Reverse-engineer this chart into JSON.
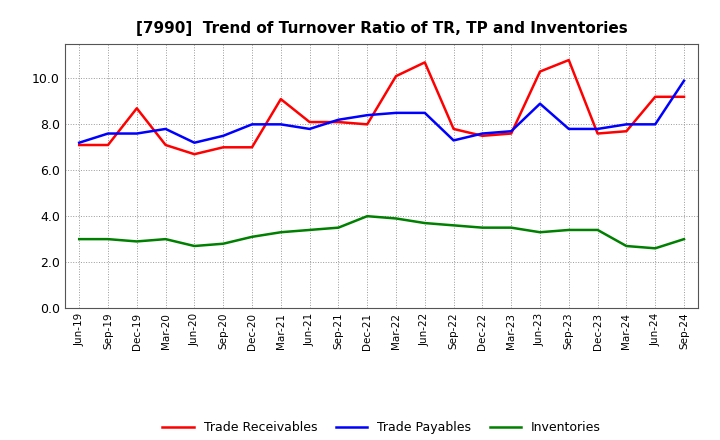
{
  "title": "[7990]  Trend of Turnover Ratio of TR, TP and Inventories",
  "labels": [
    "Jun-19",
    "Sep-19",
    "Dec-19",
    "Mar-20",
    "Jun-20",
    "Sep-20",
    "Dec-20",
    "Mar-21",
    "Jun-21",
    "Sep-21",
    "Dec-21",
    "Mar-22",
    "Jun-22",
    "Sep-22",
    "Dec-22",
    "Mar-23",
    "Jun-23",
    "Sep-23",
    "Dec-23",
    "Mar-24",
    "Jun-24",
    "Sep-24"
  ],
  "trade_receivables": [
    7.1,
    7.1,
    8.7,
    7.1,
    6.7,
    7.0,
    7.0,
    9.1,
    8.1,
    8.1,
    8.0,
    10.1,
    10.7,
    7.8,
    7.5,
    7.6,
    10.3,
    10.8,
    7.6,
    7.7,
    9.2,
    9.2
  ],
  "trade_payables": [
    7.2,
    7.6,
    7.6,
    7.8,
    7.2,
    7.5,
    8.0,
    8.0,
    7.8,
    8.2,
    8.4,
    8.5,
    8.5,
    7.3,
    7.6,
    7.7,
    8.9,
    7.8,
    7.8,
    8.0,
    8.0,
    9.9
  ],
  "inventories": [
    3.0,
    3.0,
    2.9,
    3.0,
    2.7,
    2.8,
    3.1,
    3.3,
    3.4,
    3.5,
    4.0,
    3.9,
    3.7,
    3.6,
    3.5,
    3.5,
    3.3,
    3.4,
    3.4,
    2.7,
    2.6,
    3.0
  ],
  "ylim": [
    0,
    11.5
  ],
  "yticks": [
    0.0,
    2.0,
    4.0,
    6.0,
    8.0,
    10.0
  ],
  "legend_labels": [
    "Trade Receivables",
    "Trade Payables",
    "Inventories"
  ],
  "line_colors": [
    "#ff0000",
    "#0000ff",
    "#008000"
  ],
  "background_color": "#ffffff",
  "grid_color": "#999999"
}
